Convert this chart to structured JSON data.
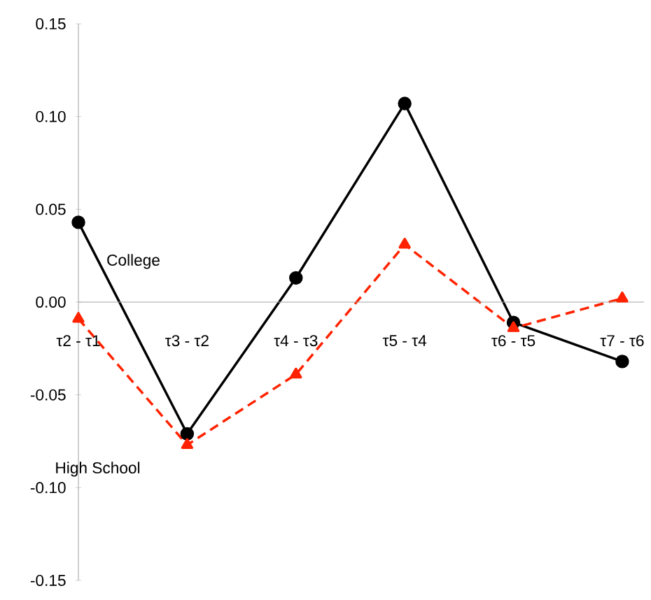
{
  "chart_data": {
    "type": "line",
    "categories": [
      "τ2 - τ1",
      "τ3 - τ2",
      "τ4 - τ3",
      "τ5 - τ4",
      "τ6 - τ5",
      "τ7 - τ6"
    ],
    "series": [
      {
        "name": "College",
        "color": "#000000",
        "marker": "circle",
        "line_style": "solid",
        "values": [
          0.043,
          -0.071,
          0.013,
          0.107,
          -0.011,
          -0.032
        ]
      },
      {
        "name": "High School",
        "color": "#ff2200",
        "marker": "triangle",
        "line_style": "dashed",
        "values": [
          -0.009,
          -0.077,
          -0.039,
          0.031,
          -0.014,
          0.002
        ]
      }
    ],
    "ylim": [
      -0.15,
      0.15
    ],
    "yticks": [
      {
        "value": -0.15,
        "label": "-0.15"
      },
      {
        "value": -0.1,
        "label": "-0.10"
      },
      {
        "value": -0.05,
        "label": "-0.05"
      },
      {
        "value": 0,
        "label": "0.00"
      },
      {
        "value": 0.05,
        "label": "0.05"
      },
      {
        "value": 0.1,
        "label": "0.10"
      },
      {
        "value": 0.15,
        "label": "0.15"
      }
    ],
    "grid": false,
    "legend": false
  }
}
